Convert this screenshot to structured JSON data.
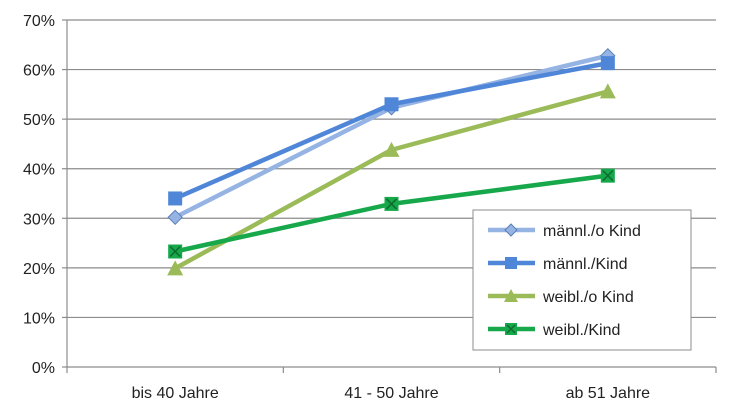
{
  "chart_data": {
    "type": "line",
    "title": "",
    "xlabel": "",
    "ylabel": "",
    "categories": [
      "bis 40 Jahre",
      "41 - 50 Jahre",
      "ab 51 Jahre"
    ],
    "ylim": [
      0,
      70
    ],
    "y_ticks": [
      0,
      10,
      20,
      30,
      40,
      50,
      60,
      70
    ],
    "y_tick_labels": [
      "0%",
      "10%",
      "20%",
      "30%",
      "40%",
      "50%",
      "60%",
      "70%"
    ],
    "grid": true,
    "legend_position": "bottom-right",
    "series": [
      {
        "name": "männl./o Kind",
        "values": [
          30.2,
          52.3,
          62.8
        ],
        "color": "#95b3e3",
        "marker": "diamond"
      },
      {
        "name": "männl./Kind",
        "values": [
          34.0,
          53.0,
          61.3
        ],
        "color": "#4f86d8",
        "marker": "square"
      },
      {
        "name": "weibl./o Kind",
        "values": [
          19.9,
          43.8,
          55.6
        ],
        "color": "#9bbb59",
        "marker": "triangle"
      },
      {
        "name": "weibl./Kind",
        "values": [
          23.3,
          32.9,
          38.6
        ],
        "color": "#16a84a",
        "marker": "x-square"
      }
    ]
  }
}
